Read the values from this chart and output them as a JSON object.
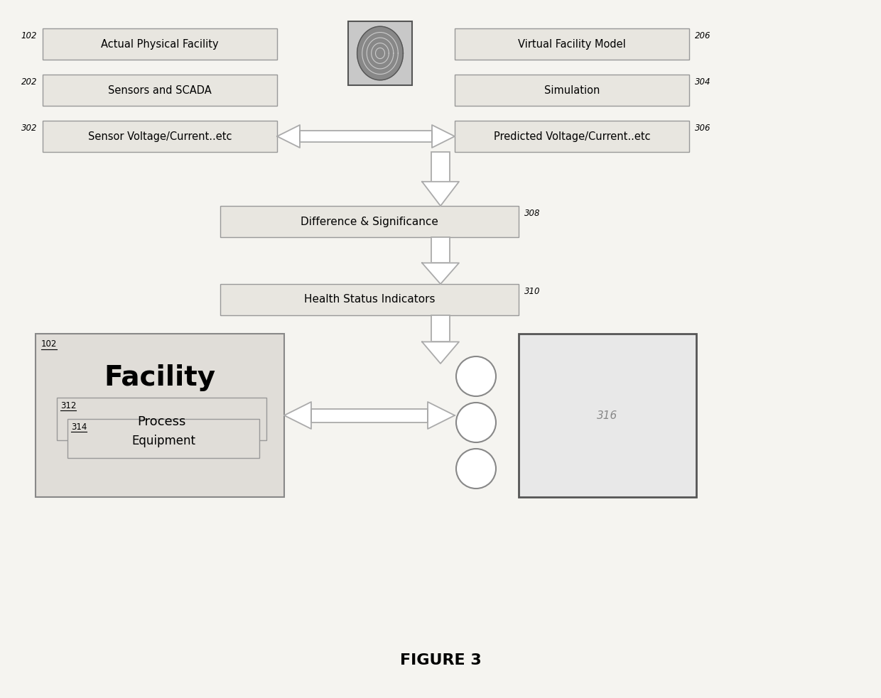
{
  "bg_color": "#f5f4f0",
  "box_fill": "#e8e6e0",
  "box_edge": "#999999",
  "white": "#ffffff",
  "figure_title": "FIGURE 3",
  "top_boxes_left": [
    {
      "label": "Actual Physical Facility",
      "ref": "102"
    },
    {
      "label": "Sensors and SCADA",
      "ref": "202"
    },
    {
      "label": "Sensor Voltage/Current..etc",
      "ref": "302"
    }
  ],
  "top_boxes_right": [
    {
      "label": "Virtual Facility Model",
      "ref": "206"
    },
    {
      "label": "Simulation",
      "ref": "304"
    },
    {
      "label": "Predicted Voltage/Current..etc",
      "ref": "306"
    }
  ],
  "mid_boxes": [
    {
      "label": "Difference & Significance",
      "ref": "308"
    },
    {
      "label": "Health Status Indicators",
      "ref": "310"
    }
  ],
  "facility_label": "Facility",
  "facility_ref": "102",
  "process_label": "Process",
  "process_ref": "312",
  "equipment_label": "Equipment",
  "equipment_ref": "314",
  "box316_ref": "316",
  "circles": 3
}
